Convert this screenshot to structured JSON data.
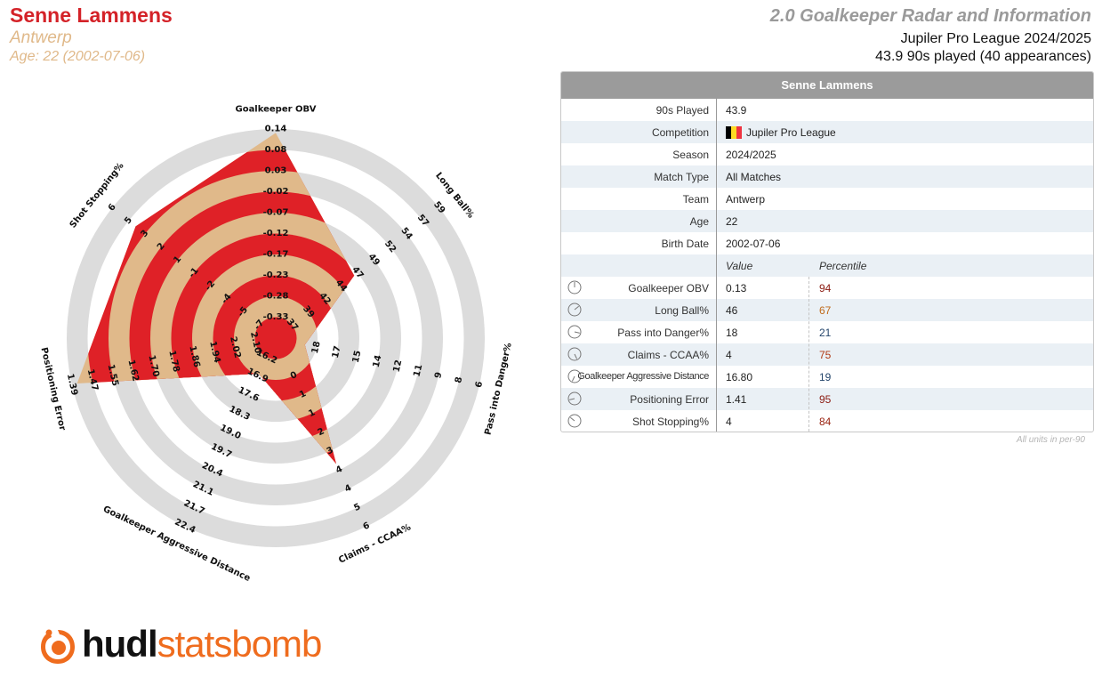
{
  "header": {
    "player_name": "Senne Lammens",
    "team": "Antwerp",
    "age_line": "Age: 22 (2002-07-06)",
    "report_title": "2.0 Goalkeeper Radar and Information",
    "league_season": "Jupiler Pro League 2024/2025",
    "minutes_line": "43.9 90s played (40 appearances)"
  },
  "colors": {
    "red": "#df2127",
    "tan": "#e0b98a",
    "ring_grey": "#dcdcdc",
    "header_grey": "#9b9b9b"
  },
  "chart_data": {
    "type": "radar",
    "title": "",
    "ring_count": 10,
    "axes": [
      {
        "label": "Goalkeeper OBV",
        "ticks": [
          "-0.33",
          "-0.28",
          "-0.23",
          "-0.17",
          "-0.12",
          "-0.07",
          "-0.02",
          "0.03",
          "0.08",
          "0.14"
        ],
        "value": 0.13,
        "min": -0.39,
        "max": 0.14
      },
      {
        "label": "Long Ball%",
        "ticks": [
          "37",
          "39",
          "42",
          "44",
          "47",
          "49",
          "52",
          "54",
          "57",
          "59"
        ],
        "value": 46,
        "min": 34,
        "max": 59
      },
      {
        "label": "Pass into Danger%",
        "ticks": [
          "18",
          "17",
          "15",
          "14",
          "12",
          "11",
          "9",
          "8",
          "6"
        ],
        "value": 18,
        "min": 20,
        "max": 6
      },
      {
        "label": "Claims - CCAA%",
        "ticks": [
          "0",
          "1",
          "1",
          "2",
          "3",
          "4",
          "4",
          "5",
          "6"
        ],
        "value": 4,
        "min": 0,
        "max": 6
      },
      {
        "label": "Goalkeeper Aggressive Distance",
        "ticks": [
          "16.2",
          "16.9",
          "17.6",
          "18.3",
          "19.0",
          "19.7",
          "20.4",
          "21.1",
          "21.7",
          "22.4"
        ],
        "value": 16.8,
        "min": 15.5,
        "max": 22.4
      },
      {
        "label": "Positioning Error",
        "ticks": [
          "2.10",
          "2.02",
          "1.94",
          "1.86",
          "1.78",
          "1.70",
          "1.62",
          "1.55",
          "1.47",
          "1.39"
        ],
        "value": 1.41,
        "min": 2.18,
        "max": 1.39
      },
      {
        "label": "Shot Stopping%",
        "ticks": [
          "-7",
          "-5",
          "-4",
          "-2",
          "-1",
          "1",
          "2",
          "3",
          "5",
          "6"
        ],
        "value": 4,
        "min": -8,
        "max": 6
      }
    ]
  },
  "table": {
    "title": "Senne Lammens",
    "info_rows": [
      {
        "label": "90s Played",
        "value": "43.9"
      },
      {
        "label": "Competition",
        "value": "Jupiler Pro League",
        "flag": [
          "#000000",
          "#fdda24",
          "#ef3340"
        ]
      },
      {
        "label": "Season",
        "value": "2024/2025"
      },
      {
        "label": "Match Type",
        "value": "All Matches"
      },
      {
        "label": "Team",
        "value": "Antwerp"
      },
      {
        "label": "Age",
        "value": "22"
      },
      {
        "label": "Birth Date",
        "value": "2002-07-06"
      }
    ],
    "value_header": "Value",
    "percentile_header": "Percentile",
    "metric_rows": [
      {
        "label": "Goalkeeper OBV",
        "value": "0.13",
        "percentile": "94",
        "pct_color": "#8b1a10",
        "icon": "dial-icon"
      },
      {
        "label": "Long Ball%",
        "value": "46",
        "percentile": "67",
        "pct_color": "#c06a1a",
        "icon": "dial-icon"
      },
      {
        "label": "Pass into Danger%",
        "value": "18",
        "percentile": "21",
        "pct_color": "#24456b",
        "icon": "dial-icon"
      },
      {
        "label": "Claims - CCAA%",
        "value": "4",
        "percentile": "75",
        "pct_color": "#b03a15",
        "icon": "dial-icon"
      },
      {
        "label": "Goalkeeper Aggressive Distance",
        "value": "16.80",
        "percentile": "19",
        "pct_color": "#24456b",
        "icon": "dial-icon"
      },
      {
        "label": "Positioning Error",
        "value": "1.41",
        "percentile": "95",
        "pct_color": "#8b1a10",
        "icon": "dial-icon"
      },
      {
        "label": "Shot Stopping%",
        "value": "4",
        "percentile": "84",
        "pct_color": "#9a2412",
        "icon": "dial-icon"
      }
    ],
    "footnote": "All units in per-90"
  },
  "logo": {
    "part1": "hudl",
    "part2": "statsbomb"
  }
}
